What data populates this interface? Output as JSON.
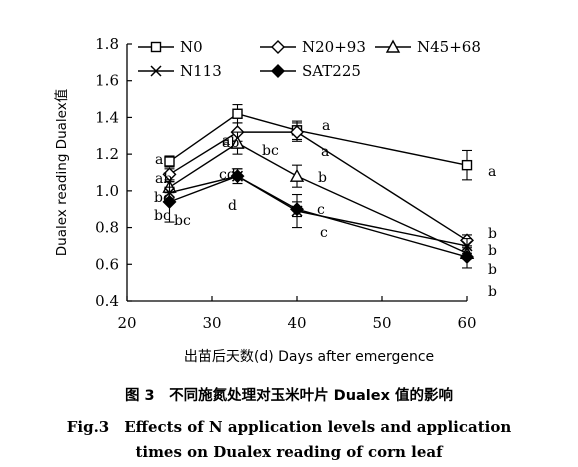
{
  "chart_data": {
    "type": "line",
    "xlabel": "出苗后天数(d) Days after emergence",
    "ylabel": "Dualex reading Dualex值",
    "xlim": [
      20,
      60
    ],
    "ylim": [
      0.4,
      1.8
    ],
    "xticks": [
      "20",
      "30",
      "40",
      "50",
      "60"
    ],
    "yticks": [
      "0.4",
      "0.6",
      "0.8",
      "1.0",
      "1.2",
      "1.4",
      "1.6",
      "1.8"
    ],
    "legend_position": "top",
    "grid": false,
    "x": [
      25,
      33,
      40,
      60
    ],
    "series": [
      {
        "name": "N0",
        "marker": "square-open",
        "values": [
          1.16,
          1.42,
          1.33,
          1.14
        ],
        "errors": [
          0.03,
          0.05,
          0.05,
          0.08
        ],
        "sig": [
          "a",
          "a",
          "a",
          "a"
        ]
      },
      {
        "name": "N20+93",
        "marker": "diamond-open",
        "values": [
          1.09,
          1.32,
          1.32,
          0.73
        ],
        "errors": [
          0.03,
          0.05,
          0.05,
          0.03
        ],
        "sig": [
          "ab",
          "ab",
          "a",
          "b"
        ]
      },
      {
        "name": "N45+68",
        "marker": "triangle-open",
        "values": [
          1.02,
          1.26,
          1.08,
          0.66
        ],
        "errors": [
          0.03,
          0.06,
          0.06,
          0.03
        ],
        "sig": [
          "bc",
          "bc",
          "b",
          "b"
        ]
      },
      {
        "name": "N113",
        "marker": "x",
        "values": [
          0.99,
          1.08,
          0.89,
          0.7
        ],
        "errors": [
          0.03,
          0.04,
          0.09,
          0.04
        ],
        "sig": [
          "bc",
          "cd",
          "c",
          "b"
        ]
      },
      {
        "name": "SAT225",
        "marker": "diamond-filled",
        "values": [
          0.94,
          1.08,
          0.9,
          0.64
        ],
        "errors": [
          0.11,
          0.04,
          0.04,
          0.06
        ],
        "sig": [
          "bc",
          "d",
          "c",
          "b"
        ]
      }
    ]
  },
  "captions": {
    "zh": "图 3　不同施氮处理对玉米叶片 Dualex 值的影响",
    "en_line1": "Fig.3　Effects of N application levels and application",
    "en_line2": "times on Dualex reading of corn leaf"
  }
}
